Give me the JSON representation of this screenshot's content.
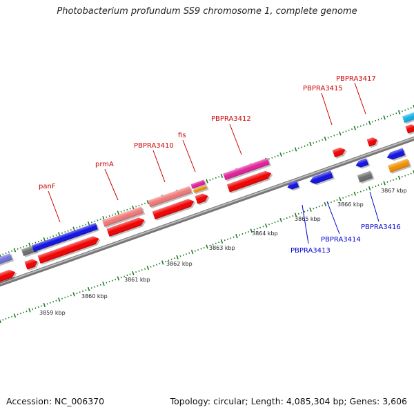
{
  "header": {
    "title": "Photobacterium profundum SS9 chromosome 1, complete genome"
  },
  "footer": {
    "accession": "Accession: NC_006370",
    "summary": "Topology: circular; Length: 4,085,304 bp; Genes: 3,606"
  },
  "colors": {
    "axis": "#8f8f8f",
    "tick": "#1f7a1f",
    "label_forward": "#cc0000",
    "label_reverse": "#0000cc",
    "red": "#f00000",
    "blue": "#1010e0",
    "pink": "#f07878",
    "magenta": "#e0209a",
    "orange": "#f09000",
    "gray": "#6e6e6e",
    "cyan": "#10b0e8",
    "lavender": "#7070d8"
  },
  "scale": {
    "unit": "kbp",
    "labels": [
      "3859 kbp",
      "3860 kbp",
      "3861 kbp",
      "3862 kbp",
      "3863 kbp",
      "3864 kbp",
      "3865 kbp",
      "3866 kbp",
      "3867 kbp"
    ]
  },
  "gene_labels": {
    "forward": [
      "panF",
      "prmA",
      "PBPRA3410",
      "fis",
      "PBPRA3412",
      "PBPRA3415",
      "PBPRA3417"
    ],
    "reverse": [
      "PBPRA3413",
      "PBPRA3414",
      "PBPRA3416"
    ]
  },
  "features": {
    "outer_track": [
      "lavender",
      "gray",
      "blue",
      "pink",
      "pink",
      "magenta",
      "orange",
      "magenta",
      "cyan"
    ],
    "middle_track": [
      "red",
      "red",
      "red",
      "red",
      "red",
      "red",
      "red",
      "red",
      "red",
      "red",
      "red",
      "red"
    ],
    "inner_track": [
      "blue",
      "blue",
      "blue",
      "gray",
      "blue",
      "orange"
    ]
  }
}
